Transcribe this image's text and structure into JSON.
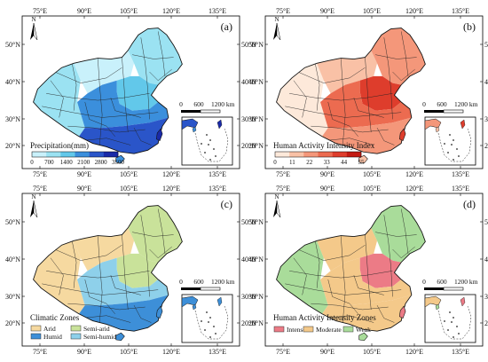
{
  "figure": {
    "panels": [
      {
        "id": "a",
        "label": "(a)",
        "lon_ticks": [
          "75°E",
          "90°E",
          "105°E",
          "120°E",
          "135°E"
        ],
        "lat_ticks": [
          "50°N",
          "40°N",
          "30°N",
          "20°N"
        ],
        "north_label": "N",
        "scale_ticks": [
          "0",
          "600",
          "1200 km"
        ],
        "legend": {
          "type": "colorbar",
          "title": "Precipitation(mm)",
          "ticks": [
            "0",
            "700",
            "1400",
            "2100",
            "2800",
            "3500"
          ],
          "colors": [
            "#c9f1fb",
            "#9be2f2",
            "#62c8ea",
            "#3b8fdc",
            "#2a55c9",
            "#1a2aa8"
          ]
        }
      },
      {
        "id": "b",
        "label": "(b)",
        "lon_ticks": [
          "75°E",
          "90°E",
          "105°E",
          "120°E",
          "135°E"
        ],
        "lat_ticks": [
          "50°N",
          "40°N",
          "30°N",
          "20°N"
        ],
        "north_label": "N",
        "scale_ticks": [
          "0",
          "600",
          "1200 km"
        ],
        "legend": {
          "type": "colorbar",
          "title": "Human Activity Intensity Index",
          "ticks": [
            "0",
            "11",
            "22",
            "33",
            "44",
            "55"
          ],
          "colors": [
            "#fde9da",
            "#f9c1a6",
            "#f4977a",
            "#ec6b50",
            "#de3d2c",
            "#c21a12"
          ]
        }
      },
      {
        "id": "c",
        "label": "(c)",
        "lon_ticks": [
          "75°E",
          "90°E",
          "105°E",
          "120°E",
          "135°E"
        ],
        "lat_ticks": [
          "50°N",
          "40°N",
          "30°N",
          "20°N"
        ],
        "north_label": "N",
        "scale_ticks": [
          "0",
          "600",
          "1200 km"
        ],
        "legend": {
          "type": "categorical",
          "title": "Climatic Zones",
          "items": [
            {
              "label": "Arid",
              "color": "#f6d9a0"
            },
            {
              "label": "Semi-arid",
              "color": "#c9e29a"
            },
            {
              "label": "Humid",
              "color": "#3d8fd8"
            },
            {
              "label": "Semi-humid",
              "color": "#8ed0ea"
            }
          ]
        }
      },
      {
        "id": "d",
        "label": "(d)",
        "lon_ticks": [
          "75°E",
          "90°E",
          "105°E",
          "120°E",
          "135°E"
        ],
        "lat_ticks": [
          "50°N",
          "40°N",
          "30°N",
          "20°N"
        ],
        "north_label": "N",
        "scale_ticks": [
          "0",
          "600",
          "1200 km"
        ],
        "legend": {
          "type": "categorical",
          "title": "Human Activity Intensity Zones",
          "items": [
            {
              "label": "Intense",
              "color": "#ec7b86"
            },
            {
              "label": "Moderate",
              "color": "#f4c98a"
            },
            {
              "label": "Weak",
              "color": "#a9dc9a"
            }
          ]
        }
      }
    ]
  }
}
